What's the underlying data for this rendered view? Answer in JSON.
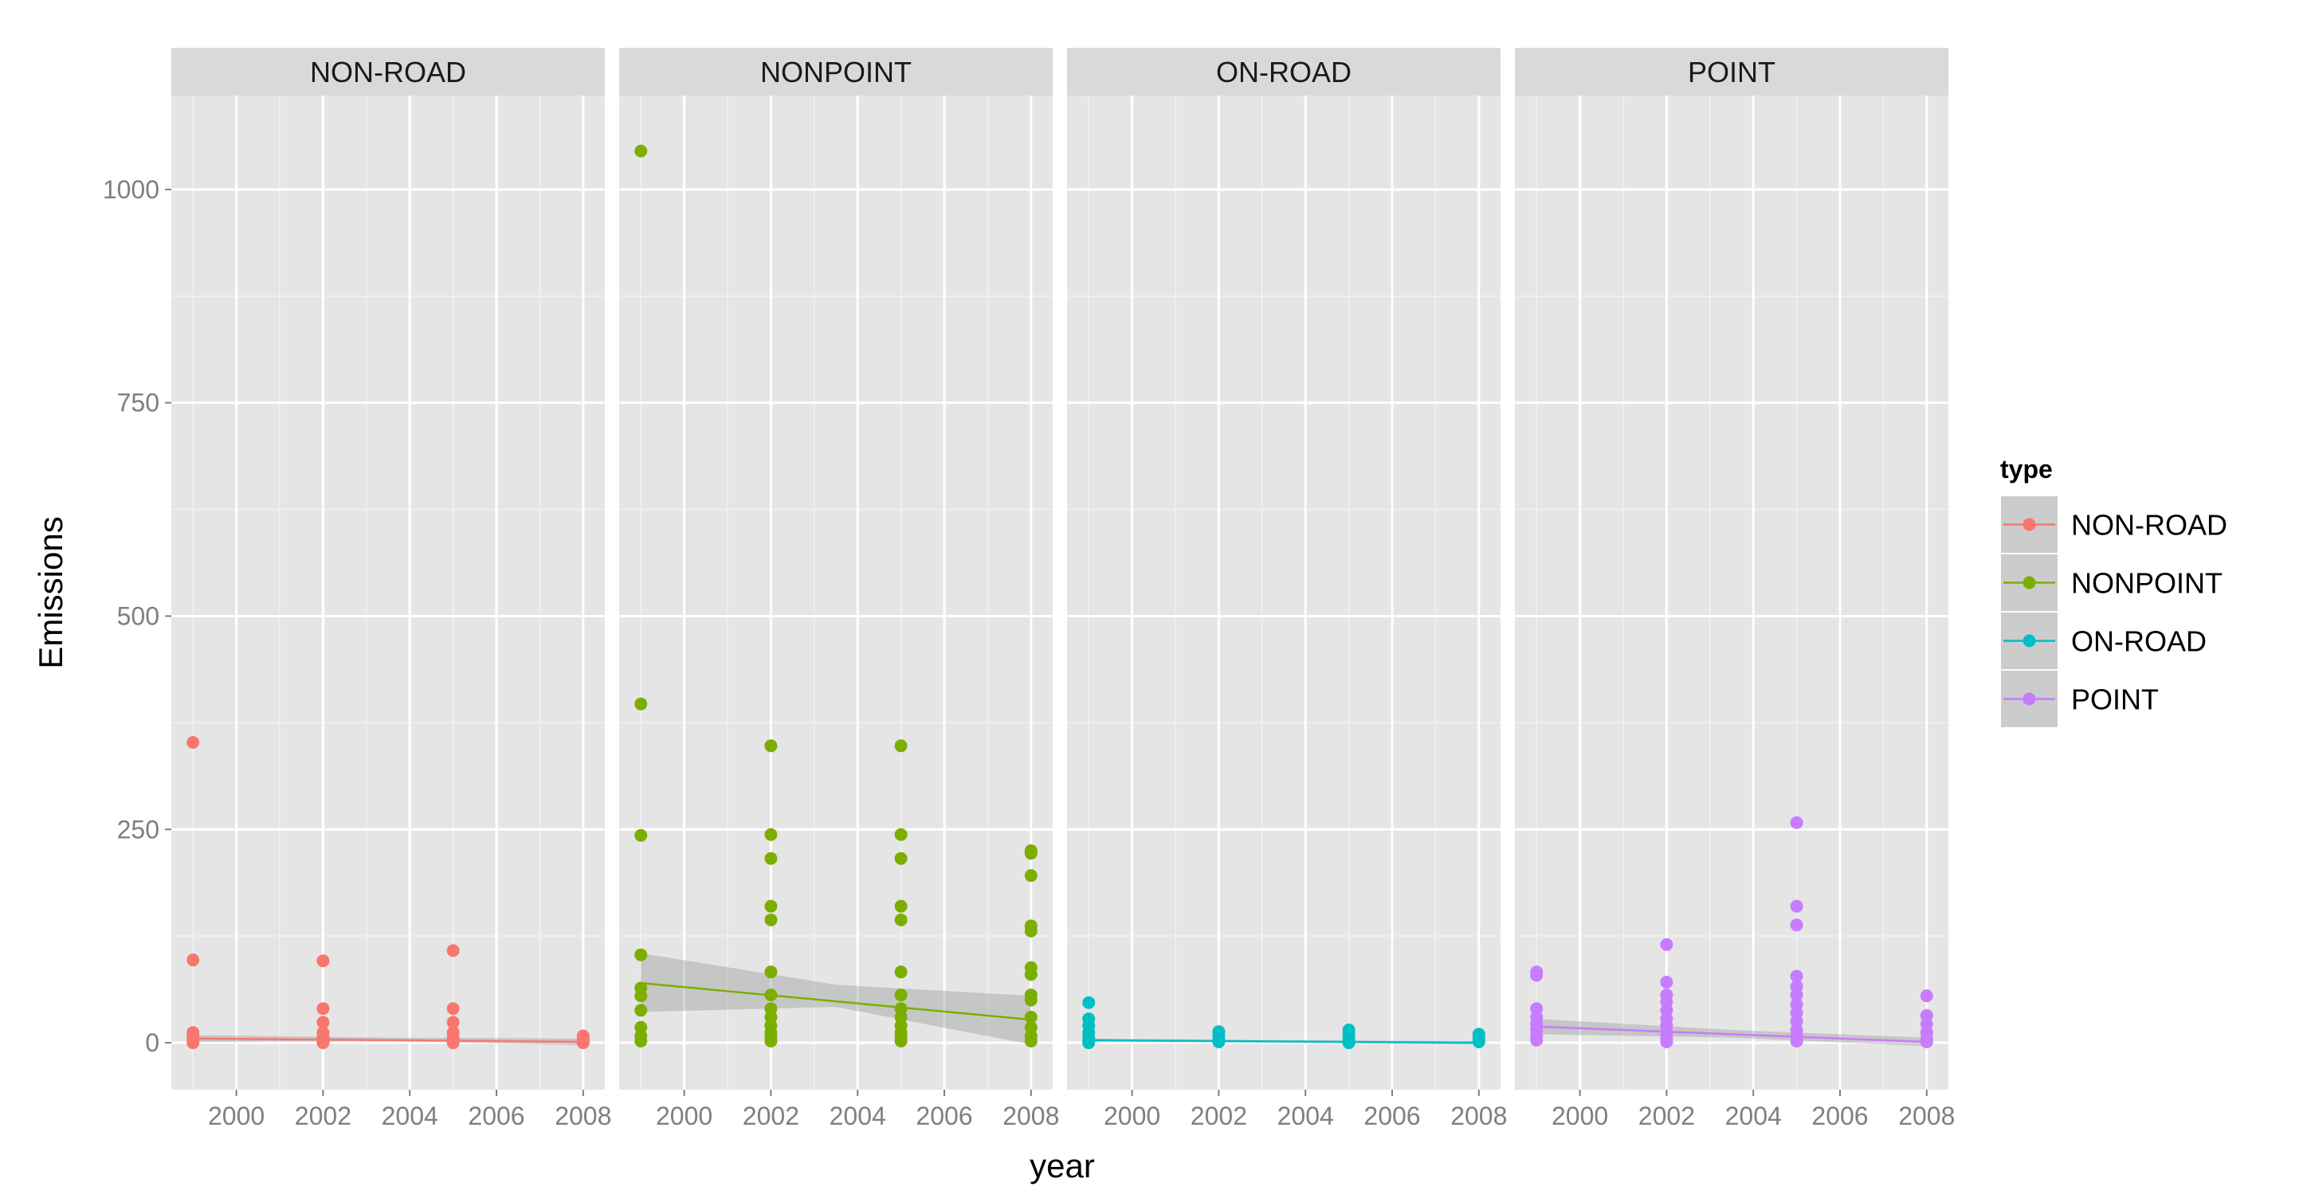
{
  "chart_data": {
    "type": "scatter",
    "title": "",
    "xlabel": "year",
    "ylabel": "Emissions",
    "xlim": [
      1998.5,
      2008.5
    ],
    "ylim": [
      -55,
      1110
    ],
    "x_ticks": [
      2000,
      2002,
      2004,
      2006,
      2008
    ],
    "x_tick_labels": [
      "2000",
      "2002",
      "2004",
      "2006",
      "2008"
    ],
    "y_ticks": [
      0,
      250,
      500,
      750,
      1000
    ],
    "y_tick_labels": [
      "0",
      "250",
      "500",
      "750",
      "1000"
    ],
    "grid": true,
    "legend": {
      "title": "type",
      "position": "right"
    },
    "panels": [
      {
        "name": "NON-ROAD",
        "color": "#F8766D",
        "points": [
          [
            1999,
            352
          ],
          [
            1999,
            97
          ],
          [
            1999,
            12
          ],
          [
            1999,
            8
          ],
          [
            1999,
            4
          ],
          [
            1999,
            2
          ],
          [
            1999,
            0
          ],
          [
            2002,
            96
          ],
          [
            2002,
            40
          ],
          [
            2002,
            24
          ],
          [
            2002,
            12
          ],
          [
            2002,
            6
          ],
          [
            2002,
            2
          ],
          [
            2002,
            0
          ],
          [
            2005,
            108
          ],
          [
            2005,
            40
          ],
          [
            2005,
            24
          ],
          [
            2005,
            12
          ],
          [
            2005,
            6
          ],
          [
            2005,
            2
          ],
          [
            2005,
            0
          ],
          [
            2008,
            8
          ],
          [
            2008,
            5
          ],
          [
            2008,
            3
          ],
          [
            2008,
            1
          ],
          [
            2008,
            0
          ]
        ],
        "trend": [
          [
            1999,
            5
          ],
          [
            2008,
            1
          ]
        ],
        "band": [
          [
            1999,
            9,
            1
          ],
          [
            2003.5,
            6,
            2
          ],
          [
            2008,
            5,
            -3
          ]
        ]
      },
      {
        "name": "NONPOINT",
        "color": "#7CAE00",
        "points": [
          [
            1999,
            1045
          ],
          [
            1999,
            397
          ],
          [
            1999,
            243
          ],
          [
            1999,
            103
          ],
          [
            1999,
            64
          ],
          [
            1999,
            55
          ],
          [
            1999,
            38
          ],
          [
            1999,
            18
          ],
          [
            1999,
            8
          ],
          [
            1999,
            2
          ],
          [
            2002,
            348
          ],
          [
            2002,
            244
          ],
          [
            2002,
            216
          ],
          [
            2002,
            160
          ],
          [
            2002,
            144
          ],
          [
            2002,
            83
          ],
          [
            2002,
            56
          ],
          [
            2002,
            40
          ],
          [
            2002,
            30
          ],
          [
            2002,
            20
          ],
          [
            2002,
            12
          ],
          [
            2002,
            6
          ],
          [
            2002,
            2
          ],
          [
            2005,
            348
          ],
          [
            2005,
            244
          ],
          [
            2005,
            216
          ],
          [
            2005,
            160
          ],
          [
            2005,
            144
          ],
          [
            2005,
            83
          ],
          [
            2005,
            56
          ],
          [
            2005,
            40
          ],
          [
            2005,
            30
          ],
          [
            2005,
            20
          ],
          [
            2005,
            12
          ],
          [
            2005,
            6
          ],
          [
            2005,
            2
          ],
          [
            2008,
            225
          ],
          [
            2008,
            222
          ],
          [
            2008,
            196
          ],
          [
            2008,
            137
          ],
          [
            2008,
            131
          ],
          [
            2008,
            88
          ],
          [
            2008,
            80
          ],
          [
            2008,
            56
          ],
          [
            2008,
            50
          ],
          [
            2008,
            30
          ],
          [
            2008,
            18
          ],
          [
            2008,
            8
          ],
          [
            2008,
            2
          ]
        ],
        "trend": [
          [
            1999,
            70
          ],
          [
            2008,
            27
          ]
        ],
        "band": [
          [
            1999,
            105,
            36
          ],
          [
            2003.5,
            68,
            42
          ],
          [
            2008,
            55,
            -2
          ]
        ]
      },
      {
        "name": "ON-ROAD",
        "color": "#00BFC4",
        "points": [
          [
            1999,
            47
          ],
          [
            1999,
            28
          ],
          [
            1999,
            20
          ],
          [
            1999,
            12
          ],
          [
            1999,
            6
          ],
          [
            1999,
            2
          ],
          [
            1999,
            0
          ],
          [
            2002,
            13
          ],
          [
            2002,
            8
          ],
          [
            2002,
            4
          ],
          [
            2002,
            1
          ],
          [
            2005,
            15
          ],
          [
            2005,
            10
          ],
          [
            2005,
            5
          ],
          [
            2005,
            2
          ],
          [
            2005,
            0
          ],
          [
            2008,
            10
          ],
          [
            2008,
            6
          ],
          [
            2008,
            3
          ],
          [
            2008,
            1
          ]
        ],
        "trend": [
          [
            1999,
            3
          ],
          [
            2008,
            0
          ]
        ],
        "band": [
          [
            1999,
            5,
            1
          ],
          [
            2003.5,
            3,
            0
          ],
          [
            2008,
            2,
            -2
          ]
        ]
      },
      {
        "name": "POINT",
        "color": "#C77CFF",
        "points": [
          [
            1999,
            83
          ],
          [
            1999,
            79
          ],
          [
            1999,
            40
          ],
          [
            1999,
            30
          ],
          [
            1999,
            22
          ],
          [
            1999,
            15
          ],
          [
            1999,
            8
          ],
          [
            1999,
            3
          ],
          [
            2002,
            115
          ],
          [
            2002,
            71
          ],
          [
            2002,
            56
          ],
          [
            2002,
            48
          ],
          [
            2002,
            38
          ],
          [
            2002,
            28
          ],
          [
            2002,
            20
          ],
          [
            2002,
            12
          ],
          [
            2002,
            5
          ],
          [
            2002,
            1
          ],
          [
            2005,
            258
          ],
          [
            2005,
            160
          ],
          [
            2005,
            138
          ],
          [
            2005,
            78
          ],
          [
            2005,
            66
          ],
          [
            2005,
            56
          ],
          [
            2005,
            45
          ],
          [
            2005,
            35
          ],
          [
            2005,
            25
          ],
          [
            2005,
            15
          ],
          [
            2005,
            8
          ],
          [
            2005,
            2
          ],
          [
            2008,
            55
          ],
          [
            2008,
            32
          ],
          [
            2008,
            22
          ],
          [
            2008,
            12
          ],
          [
            2008,
            5
          ],
          [
            2008,
            1
          ]
        ],
        "trend": [
          [
            1999,
            19
          ],
          [
            2008,
            1
          ]
        ],
        "band": [
          [
            1999,
            28,
            10
          ],
          [
            2003.5,
            15,
            6
          ],
          [
            2008,
            6,
            -4
          ]
        ]
      }
    ]
  }
}
